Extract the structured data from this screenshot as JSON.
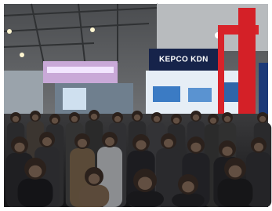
{
  "sign": {
    "text": "KEPCO KDN"
  }
}
